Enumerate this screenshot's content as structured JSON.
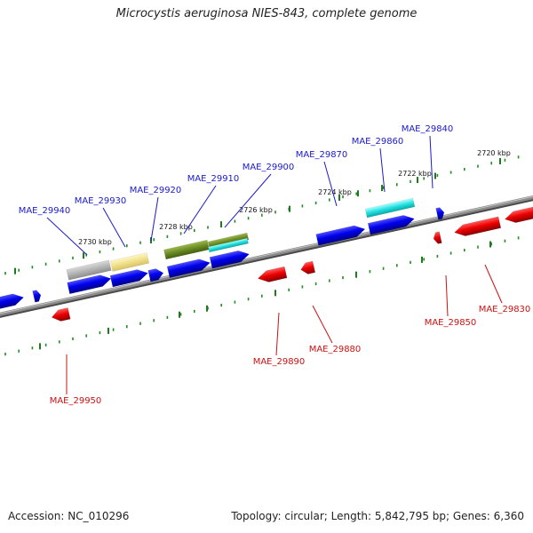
{
  "title": "Microcystis aeruginosa NIES-843, complete genome",
  "footer": {
    "accession": "Accession: NC_010296",
    "topology": "Topology: circular; Length: 5,842,795 bp; Genes: 6,360"
  },
  "colors": {
    "forward_gene": "#0000ee",
    "reverse_gene": "#ee0000",
    "backbone": "#777777",
    "tick": "#228b22",
    "forward_label": "#1a1acc",
    "reverse_label": "#cc1111"
  },
  "kbp_labels": [
    "2720 kbp",
    "2722 kbp",
    "2724 kbp",
    "2726 kbp",
    "2728 kbp",
    "2730 kbp"
  ],
  "forward_genes": [
    "MAE_29840",
    "MAE_29860",
    "MAE_29870",
    "MAE_29900",
    "MAE_29910",
    "MAE_29920",
    "MAE_29930",
    "MAE_29940"
  ],
  "reverse_genes": [
    "MAE_29830",
    "MAE_29850",
    "MAE_29880",
    "MAE_29890",
    "MAE_29950"
  ]
}
